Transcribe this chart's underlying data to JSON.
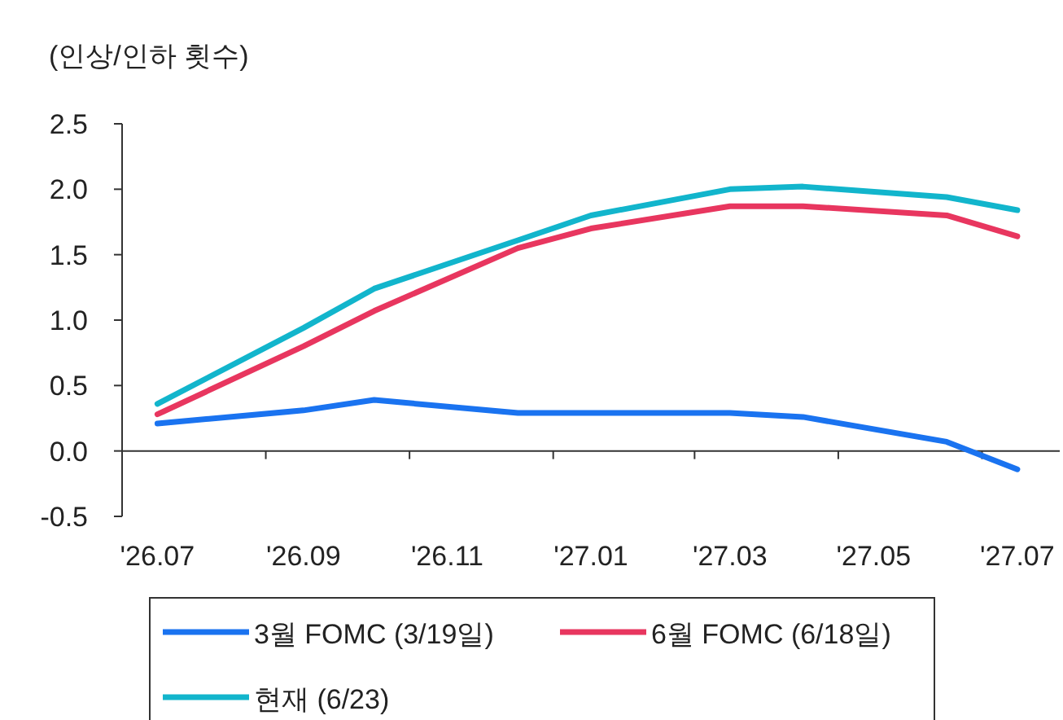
{
  "chart_data": {
    "type": "line",
    "ylabel": "(인상/인하 횟수)",
    "x": [
      "2026-07",
      "2026-09",
      "2026-10",
      "2026-12",
      "2027-01",
      "2027-03",
      "2027-04",
      "2027-06",
      "2027-07"
    ],
    "series": [
      {
        "name": "3월 FOMC (3/19일)",
        "color": "#1a73f0",
        "values": [
          0.21,
          0.31,
          0.39,
          0.29,
          0.29,
          0.29,
          0.26,
          0.07,
          -0.14
        ]
      },
      {
        "name": "6월 FOMC (6/18일)",
        "color": "#e8365f",
        "values": [
          0.28,
          0.8,
          1.07,
          1.55,
          1.7,
          1.87,
          1.87,
          1.8,
          1.64
        ]
      },
      {
        "name": "현재 (6/23)",
        "color": "#12b5cc",
        "values": [
          0.36,
          0.94,
          1.24,
          1.61,
          1.8,
          2.0,
          2.02,
          1.94,
          1.84
        ]
      }
    ],
    "ylim": [
      -0.5,
      2.5
    ],
    "yticks": [
      {
        "value": -0.5,
        "label": "-0.5"
      },
      {
        "value": 0,
        "label": "0.0"
      },
      0.5,
      {
        "value": 1,
        "label": "1.0"
      },
      1.5,
      {
        "value": 2,
        "label": "2.0"
      },
      2.5
    ],
    "xlim": [
      "2026-06-16",
      "2027-07-19"
    ],
    "xticks": [
      {
        "value": "2026-07",
        "label": "'26.07"
      },
      {
        "value": "2026-08-16",
        "label": null
      },
      {
        "value": "2026-09",
        "label": "'26.09"
      },
      {
        "value": "2026-10-16",
        "label": null
      },
      {
        "value": "2026-11",
        "label": "'26.11"
      },
      {
        "value": "2026-12-16",
        "label": null
      },
      {
        "value": "2027-01",
        "label": "'27.01"
      },
      {
        "value": "2027-02-14",
        "label": null
      },
      {
        "value": "2027-03",
        "label": "'27.03"
      },
      {
        "value": "2027-04-16",
        "label": null
      },
      {
        "value": "2027-05",
        "label": "'27.05"
      },
      {
        "value": "2027-06-16",
        "label": null
      },
      {
        "value": "2027-07",
        "label": "'27.07"
      }
    ],
    "legend": "bottom",
    "marker": "none",
    "line_style": "solid"
  }
}
